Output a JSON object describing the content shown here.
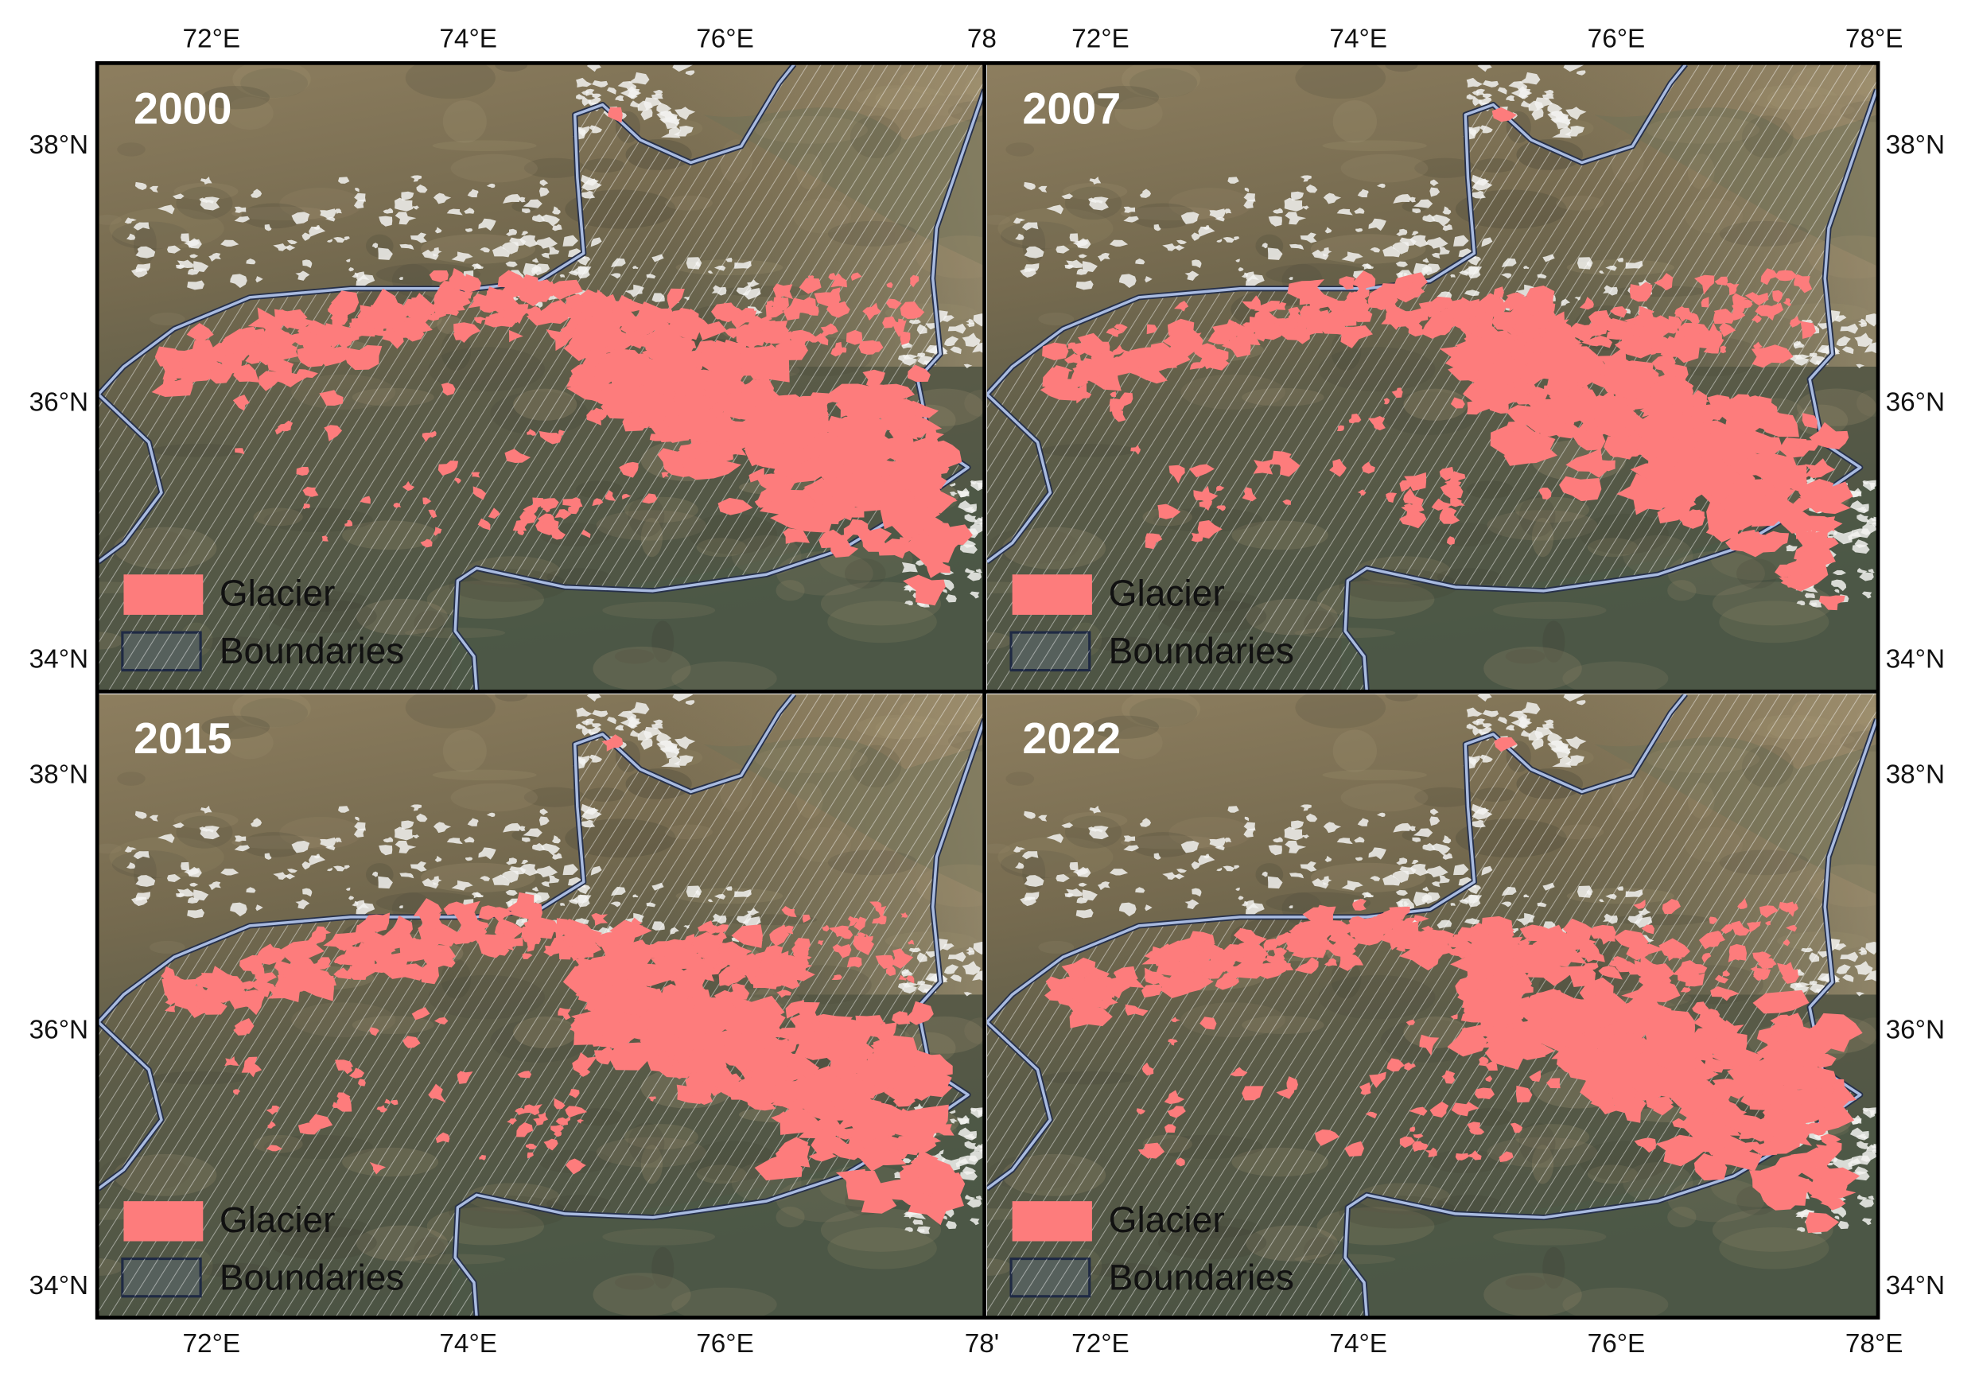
{
  "map": {
    "xlim": [
      71.12,
      78.02
    ],
    "ylim": [
      33.77,
      38.64
    ],
    "glacier_color": "#fd7c7c"
  },
  "panels": [
    {
      "title": "2000",
      "legend": [
        "Glacier",
        "Boundaries"
      ],
      "ticks": {
        "top": [
          {
            "value": 72,
            "label": "72°E"
          },
          {
            "value": 74,
            "label": "74°E"
          },
          {
            "value": 76,
            "label": "76°E"
          },
          {
            "value": 78,
            "label": "78"
          }
        ],
        "left": [
          {
            "value": 38,
            "label": "38°N"
          },
          {
            "value": 36,
            "label": "36°N"
          },
          {
            "value": 34,
            "label": "34°N"
          }
        ]
      }
    },
    {
      "title": "2007",
      "legend": [
        "Glacier",
        "Boundaries"
      ],
      "ticks": {
        "top": [
          {
            "value": 72,
            "label": "72°E"
          },
          {
            "value": 74,
            "label": "74°E"
          },
          {
            "value": 76,
            "label": "76°E"
          },
          {
            "value": 78,
            "label": "78°E"
          }
        ],
        "right": [
          {
            "value": 38,
            "label": "38°N"
          },
          {
            "value": 36,
            "label": "36°N"
          },
          {
            "value": 34,
            "label": "34°N"
          }
        ]
      }
    },
    {
      "title": "2015",
      "legend": [
        "Glacier",
        "Boundaries"
      ],
      "ticks": {
        "bottom": [
          {
            "value": 72,
            "label": "72°E"
          },
          {
            "value": 74,
            "label": "74°E"
          },
          {
            "value": 76,
            "label": "76°E"
          },
          {
            "value": 78,
            "label": "78'"
          }
        ],
        "left": [
          {
            "value": 38,
            "label": "38°N"
          },
          {
            "value": 36,
            "label": "36°N"
          },
          {
            "value": 34,
            "label": "34°N"
          }
        ]
      }
    },
    {
      "title": "2022",
      "legend": [
        "Glacier",
        "Boundaries"
      ],
      "ticks": {
        "bottom": [
          {
            "value": 72,
            "label": "72°E"
          },
          {
            "value": 74,
            "label": "74°E"
          },
          {
            "value": 76,
            "label": "76°E"
          },
          {
            "value": 78,
            "label": "78°E"
          }
        ],
        "right": [
          {
            "value": 38,
            "label": "38°N"
          },
          {
            "value": 36,
            "label": "36°N"
          },
          {
            "value": 34,
            "label": "34°N"
          }
        ]
      }
    }
  ]
}
